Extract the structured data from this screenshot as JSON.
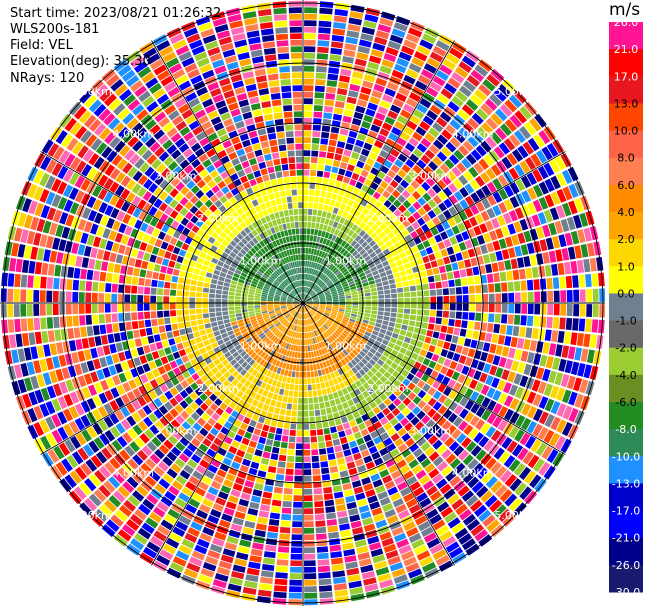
{
  "header": {
    "start_time": "Start time: 2023/08/21 01:26:32",
    "instrument": "WLS200s-181",
    "field": "Field: VEL",
    "elevation": "Elevation(deg): 35.30",
    "nrays": "NRays: 120"
  },
  "range_labels": [
    "1.00km",
    "2.00km",
    "3.00km",
    "4.00km",
    "5.00km"
  ],
  "colorbar": {
    "unit": "m/s",
    "ticks": [
      "26.0",
      "21.0",
      "17.0",
      "13.0",
      "10.0",
      "8.0",
      "6.0",
      "4.0",
      "2.0",
      "1.0",
      "0.0",
      "-1.0",
      "-2.0",
      "-4.0",
      "-6.0",
      "-8.0",
      "-10.0",
      "-13.0",
      "-17.0",
      "-21.0",
      "-26.0",
      "-30.0"
    ],
    "colors": [
      "#ff1493",
      "#ff0000",
      "#e8171d",
      "#ff4500",
      "#ff6347",
      "#ff7f50",
      "#ff8c00",
      "#ffa500",
      "#ffd700",
      "#ffff00",
      "#708090",
      "#696969",
      "#9acd32",
      "#6b8e23",
      "#228b22",
      "#2e8b57",
      "#1e90ff",
      "#0000cd",
      "#0000ff",
      "#00008b",
      "#191970",
      "#000080"
    ]
  }
}
